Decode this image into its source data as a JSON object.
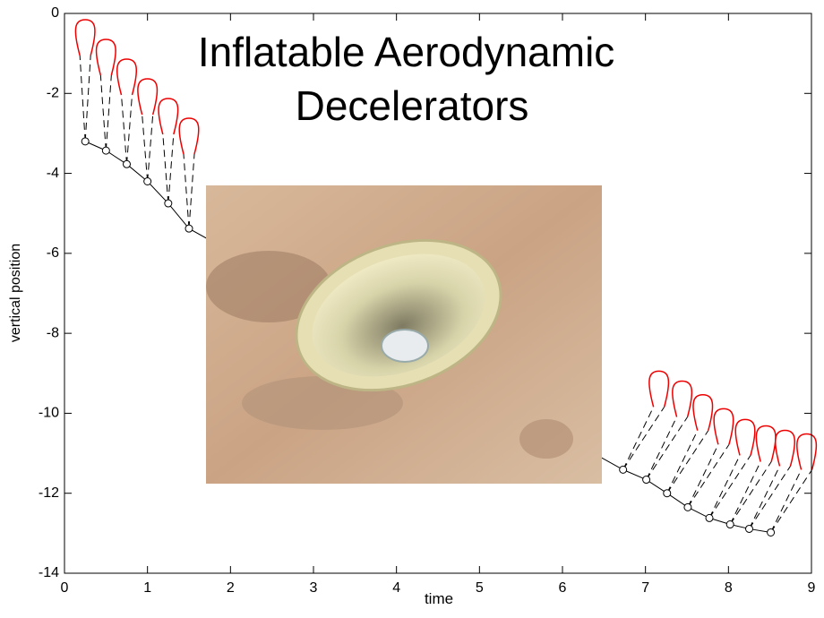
{
  "chart_data": {
    "type": "line",
    "title": "Inflatable Aerodynamic Decelerators",
    "x_label": "time",
    "y_label": "vertical position",
    "x": [
      0.25,
      0.5,
      0.75,
      1.0,
      1.25,
      1.5,
      6.73,
      7.01,
      7.26,
      7.51,
      7.77,
      8.02,
      8.25,
      8.51
    ],
    "series": [
      {
        "color": "#000000",
        "values": [
          -3.2,
          -3.43,
          -3.77,
          -4.2,
          -4.75,
          -5.38,
          -11.41,
          -11.66,
          -12.0,
          -12.35,
          -12.62,
          -12.78,
          -12.89,
          -12.98
        ]
      }
    ],
    "xlim": [
      0,
      9
    ],
    "ylim": [
      -14,
      0
    ],
    "xticks": [
      0,
      1,
      2,
      3,
      4,
      5,
      6,
      7,
      8,
      9
    ],
    "yticks": [
      -14,
      -12,
      -10,
      -8,
      -6,
      -4,
      -2,
      0
    ]
  }
}
